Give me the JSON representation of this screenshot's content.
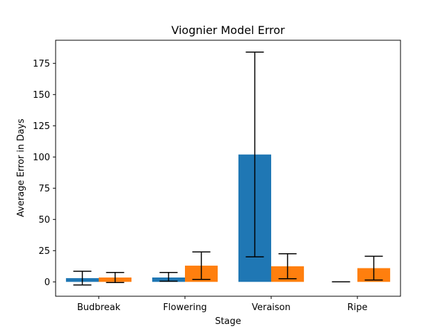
{
  "chart_data": {
    "type": "bar",
    "title": "Viognier Model Error",
    "xlabel": "Stage",
    "ylabel": "Average Error in Days",
    "categories": [
      "Budbreak",
      "Flowering",
      "Veraison",
      "Ripe"
    ],
    "series": [
      {
        "color": "#1f77b4",
        "values": [
          3.0,
          3.5,
          102.0,
          0.0
        ],
        "err_low": [
          -2.5,
          0.5,
          20.0,
          0.0
        ],
        "err_high": [
          8.5,
          7.5,
          184.0,
          0.0
        ]
      },
      {
        "color": "#ff7f0e",
        "values": [
          3.5,
          13.0,
          12.5,
          11.0
        ],
        "err_low": [
          -0.5,
          2.0,
          2.5,
          1.5
        ],
        "err_high": [
          7.5,
          24.0,
          22.5,
          20.5
        ]
      }
    ],
    "ylim": [
      -11.5,
      193.5
    ],
    "yticks": [
      0,
      25,
      50,
      75,
      100,
      125,
      150,
      175
    ],
    "grid": false
  }
}
